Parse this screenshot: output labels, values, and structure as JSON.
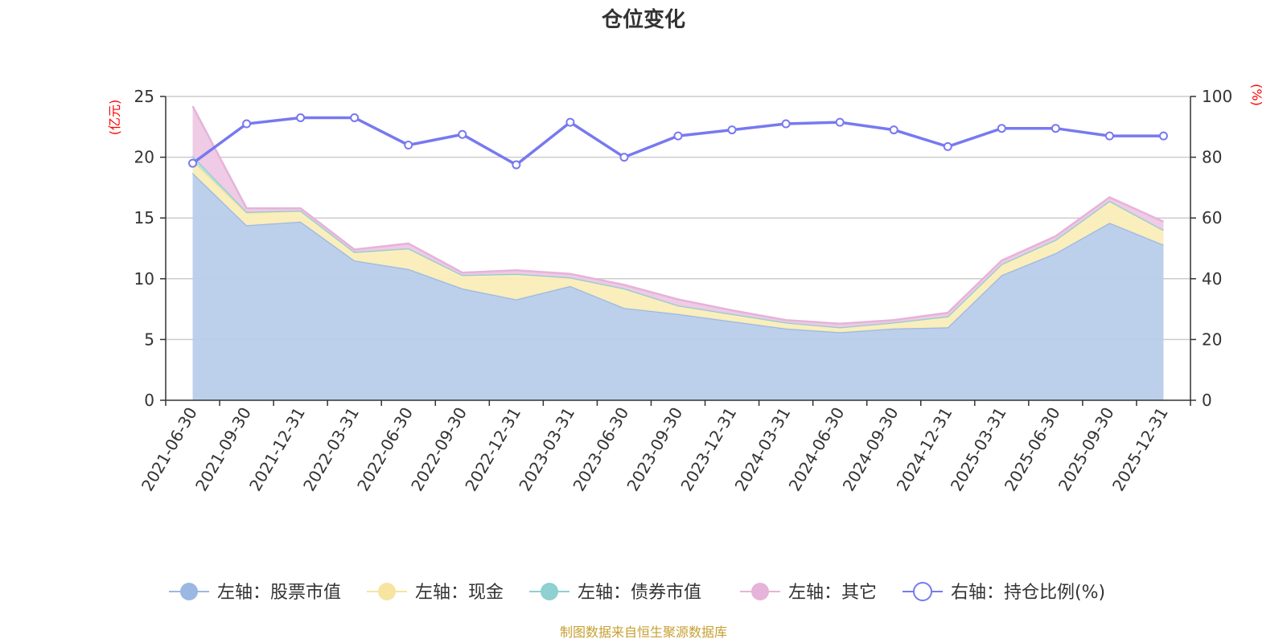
{
  "chart_data": {
    "type": "area",
    "title": "仓位变化",
    "source_note": "制图数据来自恒生聚源数据库",
    "left_axis": {
      "unit": "(亿元)",
      "ylim": [
        0,
        25
      ],
      "ticks": [
        0,
        5,
        10,
        15,
        20,
        25
      ]
    },
    "right_axis": {
      "unit": "(%)",
      "ylim": [
        0,
        100
      ],
      "ticks": [
        0,
        20,
        40,
        60,
        80,
        100
      ]
    },
    "categories": [
      "2021-06-30",
      "2021-09-30",
      "2021-12-31",
      "2022-03-31",
      "2022-06-30",
      "2022-09-30",
      "2022-12-31",
      "2023-03-31",
      "2023-06-30",
      "2023-09-30",
      "2023-12-31",
      "2024-03-31",
      "2024-06-30",
      "2024-09-30",
      "2024-12-31",
      "2025-03-31",
      "2025-06-30",
      "2025-09-30",
      "2025-12-31"
    ],
    "series": [
      {
        "name": "左轴：股票市值",
        "axis": "left",
        "stack": true,
        "color": "#9bb8e3",
        "fill": "#b8cdeb",
        "values": [
          18.7,
          14.4,
          14.7,
          11.5,
          10.8,
          9.2,
          8.3,
          9.4,
          7.6,
          7.1,
          6.5,
          5.9,
          5.6,
          5.9,
          6.0,
          10.3,
          12.1,
          14.6,
          12.8
        ]
      },
      {
        "name": "左轴：现金",
        "axis": "left",
        "stack": true,
        "color": "#f7e4a0",
        "fill": "#fbedb9",
        "values": [
          1.0,
          1.0,
          0.9,
          0.7,
          1.7,
          1.1,
          2.1,
          0.7,
          1.6,
          0.7,
          0.6,
          0.5,
          0.4,
          0.5,
          0.9,
          0.9,
          1.1,
          1.8,
          1.2
        ]
      },
      {
        "name": "左轴：债券市值",
        "axis": "left",
        "stack": true,
        "color": "#8fd0d0",
        "fill": "#b4e0e0",
        "values": [
          0.4,
          0.1,
          0,
          0,
          0,
          0,
          0,
          0,
          0,
          0,
          0,
          0,
          0,
          0,
          0,
          0,
          0,
          0,
          0
        ]
      },
      {
        "name": "左轴：其它",
        "axis": "left",
        "stack": true,
        "color": "#e6b3d9",
        "fill": "#eec8e4",
        "values": [
          4.1,
          0.3,
          0.2,
          0.2,
          0.4,
          0.2,
          0.3,
          0.3,
          0.3,
          0.5,
          0.3,
          0.2,
          0.3,
          0.2,
          0.3,
          0.3,
          0.3,
          0.3,
          0.7
        ]
      },
      {
        "name": "右轴：持仓比例(%)",
        "axis": "right",
        "stack": false,
        "color": "#7779f0",
        "fill": "none",
        "values": [
          78,
          91,
          93,
          93,
          84,
          87.5,
          77.5,
          91.5,
          80,
          87,
          89,
          91,
          91.5,
          89,
          83.5,
          89.5,
          89.5,
          87,
          87
        ]
      }
    ],
    "legend_position": "bottom",
    "grid": true
  }
}
